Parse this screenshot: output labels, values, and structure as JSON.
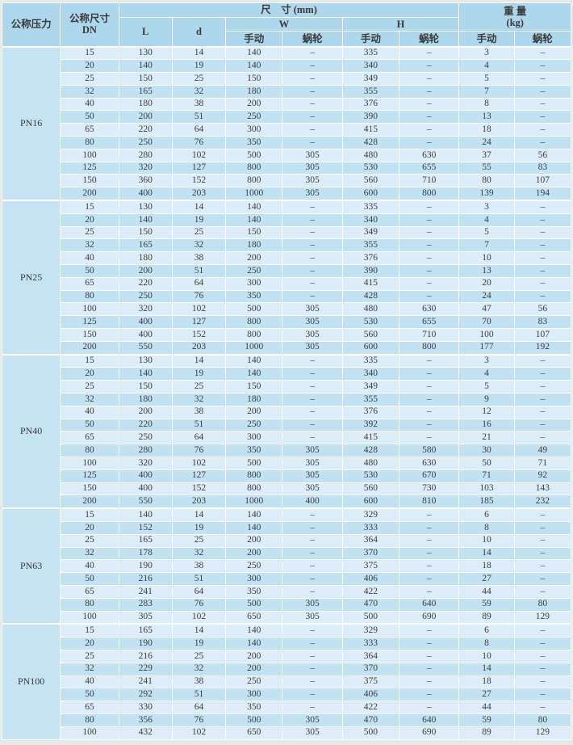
{
  "header": {
    "pressure": "公称压力",
    "dn_line1": "公称尺寸",
    "dn_line2": "DN",
    "size_group": "尺　寸 (mm)",
    "col_L": "L",
    "col_d": "d",
    "group_W": "W",
    "group_H": "H",
    "weight_line1": "重 量",
    "weight_line2": "(kg)",
    "manual": "手动",
    "worm": "蜗轮"
  },
  "colors": {
    "header_bg": "#aed6ec",
    "row_light": "#dcedf9",
    "row_dark": "#c2e1f3",
    "pn_cell_bg": "#c6e3f4",
    "border": "#fbfdfe",
    "text": "#3d3d3d"
  },
  "dash": "–",
  "sections": [
    {
      "pressure": "PN16",
      "rows": [
        [
          "15",
          "130",
          "14",
          "140",
          "–",
          "335",
          "–",
          "3",
          "–"
        ],
        [
          "20",
          "140",
          "19",
          "140",
          "–",
          "340",
          "–",
          "4",
          "–"
        ],
        [
          "25",
          "150",
          "25",
          "150",
          "–",
          "349",
          "–",
          "5",
          "–"
        ],
        [
          "32",
          "165",
          "32",
          "180",
          "–",
          "355",
          "–",
          "7",
          "–"
        ],
        [
          "40",
          "180",
          "38",
          "200",
          "–",
          "376",
          "–",
          "8",
          "–"
        ],
        [
          "50",
          "200",
          "51",
          "250",
          "–",
          "390",
          "–",
          "13",
          "–"
        ],
        [
          "65",
          "220",
          "64",
          "300",
          "–",
          "415",
          "–",
          "18",
          "–"
        ],
        [
          "80",
          "250",
          "76",
          "350",
          "–",
          "428",
          "–",
          "24",
          "–"
        ],
        [
          "100",
          "280",
          "102",
          "500",
          "305",
          "480",
          "630",
          "37",
          "56"
        ],
        [
          "125",
          "320",
          "127",
          "800",
          "305",
          "530",
          "655",
          "55",
          "83"
        ],
        [
          "150",
          "360",
          "152",
          "800",
          "305",
          "560",
          "710",
          "80",
          "107"
        ],
        [
          "200",
          "400",
          "203",
          "1000",
          "305",
          "600",
          "800",
          "139",
          "194"
        ]
      ]
    },
    {
      "pressure": "PN25",
      "rows": [
        [
          "15",
          "130",
          "14",
          "140",
          "–",
          "335",
          "–",
          "3",
          "–"
        ],
        [
          "20",
          "140",
          "19",
          "140",
          "–",
          "340",
          "–",
          "4",
          "–"
        ],
        [
          "25",
          "150",
          "25",
          "150",
          "–",
          "349",
          "–",
          "5",
          "–"
        ],
        [
          "32",
          "165",
          "32",
          "180",
          "–",
          "355",
          "–",
          "7",
          "–"
        ],
        [
          "40",
          "180",
          "38",
          "200",
          "–",
          "376",
          "–",
          "10",
          "–"
        ],
        [
          "50",
          "200",
          "51",
          "250",
          "–",
          "390",
          "–",
          "13",
          "–"
        ],
        [
          "65",
          "220",
          "64",
          "300",
          "–",
          "415",
          "–",
          "20",
          "–"
        ],
        [
          "80",
          "250",
          "76",
          "350",
          "–",
          "428",
          "–",
          "24",
          "–"
        ],
        [
          "100",
          "320",
          "102",
          "500",
          "305",
          "480",
          "630",
          "47",
          "56"
        ],
        [
          "125",
          "400",
          "127",
          "800",
          "305",
          "530",
          "655",
          "70",
          "83"
        ],
        [
          "150",
          "400",
          "152",
          "800",
          "305",
          "560",
          "710",
          "100",
          "107"
        ],
        [
          "200",
          "550",
          "203",
          "1000",
          "305",
          "600",
          "800",
          "177",
          "192"
        ]
      ]
    },
    {
      "pressure": "PN40",
      "rows": [
        [
          "15",
          "130",
          "14",
          "140",
          "–",
          "335",
          "–",
          "3",
          "–"
        ],
        [
          "20",
          "140",
          "19",
          "140",
          "–",
          "340",
          "–",
          "4",
          "–"
        ],
        [
          "25",
          "150",
          "25",
          "150",
          "–",
          "349",
          "–",
          "5",
          "–"
        ],
        [
          "32",
          "180",
          "32",
          "180",
          "–",
          "355",
          "–",
          "9",
          "–"
        ],
        [
          "40",
          "200",
          "38",
          "200",
          "–",
          "376",
          "–",
          "12",
          "–"
        ],
        [
          "50",
          "220",
          "51",
          "250",
          "–",
          "392",
          "–",
          "16",
          "–"
        ],
        [
          "65",
          "250",
          "64",
          "300",
          "–",
          "415",
          "–",
          "21",
          "–"
        ],
        [
          "80",
          "280",
          "76",
          "350",
          "305",
          "428",
          "580",
          "30",
          "49"
        ],
        [
          "100",
          "320",
          "102",
          "500",
          "305",
          "480",
          "630",
          "50",
          "71"
        ],
        [
          "125",
          "400",
          "127",
          "800",
          "305",
          "530",
          "670",
          "71",
          "92"
        ],
        [
          "150",
          "400",
          "152",
          "800",
          "305",
          "560",
          "730",
          "103",
          "143"
        ],
        [
          "200",
          "550",
          "203",
          "1000",
          "400",
          "600",
          "810",
          "185",
          "232"
        ]
      ]
    },
    {
      "pressure": "PN63",
      "rows": [
        [
          "15",
          "140",
          "14",
          "140",
          "–",
          "329",
          "–",
          "6",
          "–"
        ],
        [
          "20",
          "152",
          "19",
          "140",
          "–",
          "333",
          "–",
          "8",
          "–"
        ],
        [
          "25",
          "165",
          "25",
          "200",
          "–",
          "364",
          "–",
          "10",
          "–"
        ],
        [
          "32",
          "178",
          "32",
          "200",
          "–",
          "370",
          "–",
          "14",
          "–"
        ],
        [
          "40",
          "190",
          "38",
          "250",
          "–",
          "375",
          "–",
          "18",
          "–"
        ],
        [
          "50",
          "216",
          "51",
          "300",
          "–",
          "406",
          "–",
          "27",
          "–"
        ],
        [
          "65",
          "241",
          "64",
          "350",
          "–",
          "422",
          "–",
          "44",
          "–"
        ],
        [
          "80",
          "283",
          "76",
          "500",
          "305",
          "470",
          "640",
          "59",
          "80"
        ],
        [
          "100",
          "305",
          "102",
          "650",
          "305",
          "500",
          "690",
          "89",
          "129"
        ]
      ]
    },
    {
      "pressure": "PN100",
      "rows": [
        [
          "15",
          "165",
          "14",
          "140",
          "–",
          "329",
          "–",
          "6",
          "–"
        ],
        [
          "20",
          "190",
          "19",
          "140",
          "–",
          "333",
          "–",
          "8",
          "–"
        ],
        [
          "25",
          "216",
          "25",
          "200",
          "–",
          "364",
          "–",
          "10",
          "–"
        ],
        [
          "32",
          "229",
          "32",
          "200",
          "–",
          "370",
          "–",
          "14",
          "–"
        ],
        [
          "40",
          "241",
          "38",
          "250",
          "–",
          "375",
          "–",
          "18",
          "–"
        ],
        [
          "50",
          "292",
          "51",
          "300",
          "–",
          "406",
          "–",
          "27",
          "–"
        ],
        [
          "65",
          "330",
          "64",
          "350",
          "–",
          "422",
          "–",
          "44",
          "–"
        ],
        [
          "80",
          "356",
          "76",
          "500",
          "305",
          "470",
          "640",
          "59",
          "80"
        ],
        [
          "100",
          "432",
          "102",
          "650",
          "305",
          "500",
          "690",
          "89",
          "129"
        ]
      ]
    }
  ]
}
